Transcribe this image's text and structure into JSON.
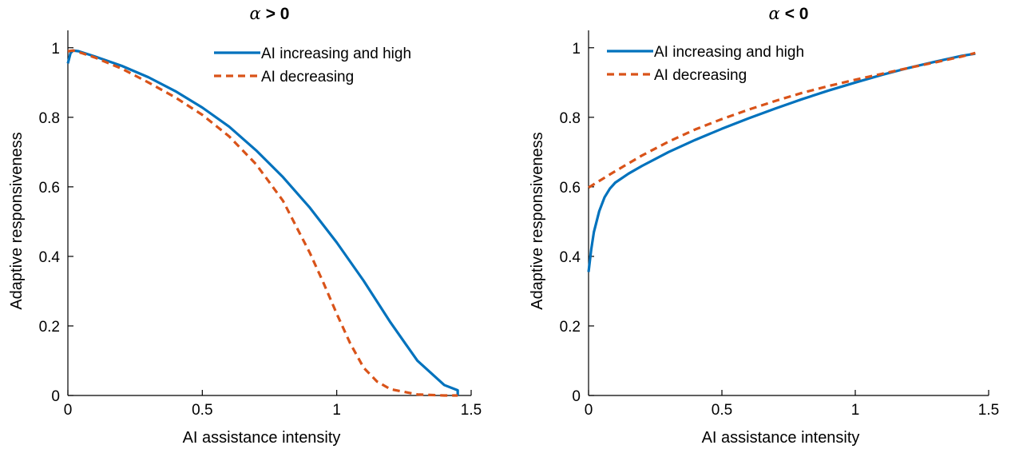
{
  "chart_data": [
    {
      "type": "line",
      "title_symbol": "α",
      "title": "> 0",
      "xlabel": "AI assistance intensity",
      "ylabel": "Adaptive responsiveness",
      "xlim": [
        0,
        1.5
      ],
      "ylim": [
        0,
        1.05
      ],
      "xticks": [
        0,
        0.5,
        1,
        1.5
      ],
      "xtick_labels": [
        "0",
        "0.5",
        "1",
        "1.5"
      ],
      "yticks": [
        0,
        0.2,
        0.4,
        0.6,
        0.8,
        1
      ],
      "ytick_labels": [
        "0",
        "0.2",
        "0.4",
        "0.6",
        "0.8",
        "1"
      ],
      "grid": false,
      "legend_position": "top-right",
      "series": [
        {
          "name": "AI increasing and high",
          "style": "solid",
          "color": "#0072BD",
          "x": [
            0,
            0.01,
            0.02,
            0.04,
            0.1,
            0.2,
            0.3,
            0.4,
            0.5,
            0.6,
            0.7,
            0.8,
            0.9,
            1.0,
            1.1,
            1.2,
            1.3,
            1.4,
            1.45,
            1.45
          ],
          "y": [
            0.955,
            0.985,
            0.992,
            0.99,
            0.975,
            0.948,
            0.915,
            0.875,
            0.828,
            0.773,
            0.705,
            0.628,
            0.54,
            0.44,
            0.33,
            0.21,
            0.1,
            0.03,
            0.015,
            0
          ]
        },
        {
          "name": "AI decreasing",
          "style": "dashed",
          "color": "#D95319",
          "x": [
            0,
            0.02,
            0.05,
            0.1,
            0.2,
            0.3,
            0.4,
            0.5,
            0.6,
            0.7,
            0.8,
            0.9,
            0.95,
            1.0,
            1.05,
            1.1,
            1.15,
            1.2,
            1.3,
            1.4,
            1.45
          ],
          "y": [
            0.99,
            0.992,
            0.985,
            0.972,
            0.94,
            0.9,
            0.857,
            0.807,
            0.745,
            0.665,
            0.56,
            0.41,
            0.325,
            0.235,
            0.15,
            0.08,
            0.04,
            0.018,
            0.003,
            0.0,
            0.0
          ]
        }
      ]
    },
    {
      "type": "line",
      "title_symbol": "α",
      "title": "< 0",
      "xlabel": "AI assistance intensity",
      "ylabel": "Adaptive responsiveness",
      "xlim": [
        0,
        1.5
      ],
      "ylim": [
        0,
        1.05
      ],
      "xticks": [
        0,
        0.5,
        1,
        1.5
      ],
      "xtick_labels": [
        "0",
        "0.5",
        "1",
        "1.5"
      ],
      "yticks": [
        0,
        0.2,
        0.4,
        0.6,
        0.8,
        1
      ],
      "ytick_labels": [
        "0",
        "0.2",
        "0.4",
        "0.6",
        "0.8",
        "1"
      ],
      "grid": false,
      "legend_position": "top-left",
      "series": [
        {
          "name": "AI increasing and high",
          "style": "solid",
          "color": "#0072BD",
          "x": [
            0,
            0.01,
            0.02,
            0.04,
            0.06,
            0.08,
            0.1,
            0.15,
            0.2,
            0.3,
            0.4,
            0.5,
            0.6,
            0.7,
            0.8,
            0.9,
            1.0,
            1.1,
            1.2,
            1.3,
            1.4,
            1.45
          ],
          "y": [
            0.355,
            0.42,
            0.47,
            0.53,
            0.57,
            0.595,
            0.612,
            0.638,
            0.66,
            0.7,
            0.735,
            0.767,
            0.797,
            0.825,
            0.852,
            0.877,
            0.9,
            0.922,
            0.942,
            0.96,
            0.977,
            0.983
          ]
        },
        {
          "name": "AI decreasing",
          "style": "dashed",
          "color": "#D95319",
          "x": [
            0,
            0.1,
            0.2,
            0.3,
            0.4,
            0.5,
            0.6,
            0.7,
            0.8,
            0.9,
            1.0,
            1.1,
            1.2,
            1.3,
            1.4,
            1.45
          ],
          "y": [
            0.598,
            0.645,
            0.69,
            0.73,
            0.765,
            0.795,
            0.822,
            0.847,
            0.87,
            0.89,
            0.908,
            0.925,
            0.942,
            0.958,
            0.975,
            0.985
          ]
        }
      ]
    }
  ]
}
